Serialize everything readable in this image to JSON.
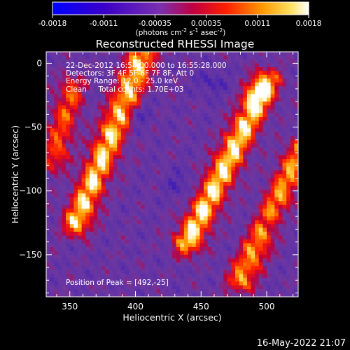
{
  "chart_data": {
    "type": "heatmap",
    "title": "Reconstructed RHESSI Image",
    "xlabel": "Heliocentric X (arcsec)",
    "ylabel": "Heliocentric Y (arcsec)",
    "x_range": [
      332,
      524
    ],
    "y_range": [
      -183,
      9
    ],
    "x_ticks": [
      350,
      400,
      450,
      500
    ],
    "y_ticks": [
      0,
      -50,
      -100,
      -150
    ],
    "colorbar": {
      "range": [
        -0.0018,
        0.0018
      ],
      "ticks": [
        "-0.0018",
        "-0.0011",
        "-0.00035",
        "0.00035",
        "0.0011",
        "0.0018"
      ],
      "unit_main": "(photons cm",
      "unit_exp1": "-2",
      "unit_mid1": " s",
      "unit_exp2": "-1",
      "unit_mid2": " asec",
      "unit_exp3": "-2",
      "unit_end": ")"
    },
    "annotations": [
      "22-Dec-2012 16:54:00.000 to 16:55:28.000",
      "Detectors: 3F 4F 5F 6F 7F 8F, Att 0",
      "Energy Range: 12.0 - 25.0 keV",
      "Clean     Total counts: 1.70E+03"
    ],
    "peak_label": "Position of Peak = [492,-25]",
    "peak_position": [
      492,
      -25
    ],
    "bright_ridges": [
      {
        "from": [
          355,
          -125
        ],
        "to": [
          405,
          5
        ]
      },
      {
        "from": [
          440,
          -140
        ],
        "to": [
          500,
          -15
        ]
      },
      {
        "from": [
          480,
          -170
        ],
        "to": [
          525,
          -70
        ]
      },
      {
        "from": [
          338,
          -75
        ],
        "to": [
          352,
          -20
        ]
      }
    ]
  },
  "footer": {
    "timestamp": "16-May-2022 21:07"
  }
}
